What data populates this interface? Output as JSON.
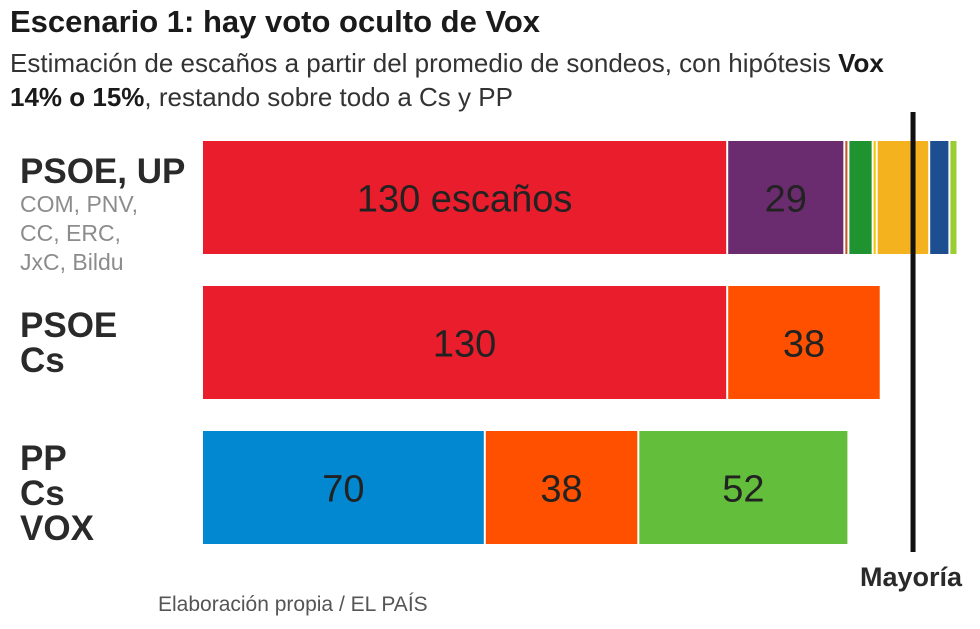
{
  "title": "Escenario 1: hay voto oculto de Vox",
  "subtitle": {
    "part1": "Estimación de escaños a partir del promedio de sondeos, con hipótesis ",
    "bold": "Vox 14% o 15%",
    "part2": ", restando sobre todo a Cs y PP"
  },
  "source": "Elaboración propia / EL PAÍS",
  "majority_label": "Mayoría",
  "colors": {
    "PSOE": "#ea1d2c",
    "UP": "#6b2c6f",
    "Cs": "#ff5000",
    "PP": "#0288d1",
    "VOX": "#63be3b",
    "COM": "#c0552b",
    "PNV": "#1e9330",
    "CC": "#f2c500",
    "ERC": "#f3b21e",
    "JxC": "#1d4e8f",
    "Bildu": "#9acd32"
  },
  "groups": [
    {
      "label": "PSOE, UP",
      "sublabel": "COM, PNV,\nCC, ERC,\nJxC, Bildu"
    },
    {
      "label": "PSOE\nCs",
      "sublabel": ""
    },
    {
      "label": "PP\nCs\nVOX",
      "sublabel": ""
    }
  ],
  "chart_data": {
    "type": "bar",
    "orientation": "horizontal",
    "stacked": true,
    "title": "Escenario 1: hay voto oculto de Vox",
    "unit": "escaños",
    "majority": 176,
    "majority_label": "Mayoría",
    "categories": [
      "PSOE, UP, COM, PNV, CC, ERC, JxC, Bildu",
      "PSOE, Cs",
      "PP, Cs, VOX"
    ],
    "bars": [
      {
        "segments": [
          {
            "party": "PSOE",
            "value": 130,
            "label": "130 escaños"
          },
          {
            "party": "UP",
            "value": 29,
            "label": "29"
          },
          {
            "party": "COM",
            "value": 1,
            "label": ""
          },
          {
            "party": "PNV",
            "value": 6,
            "label": ""
          },
          {
            "party": "CC",
            "value": 1,
            "label": ""
          },
          {
            "party": "ERC",
            "value": 13,
            "label": ""
          },
          {
            "party": "JxC",
            "value": 5,
            "label": ""
          },
          {
            "party": "Bildu",
            "value": 2,
            "label": ""
          }
        ]
      },
      {
        "segments": [
          {
            "party": "PSOE",
            "value": 130,
            "label": "130"
          },
          {
            "party": "Cs",
            "value": 38,
            "label": "38"
          }
        ]
      },
      {
        "segments": [
          {
            "party": "PP",
            "value": 70,
            "label": "70"
          },
          {
            "party": "Cs",
            "value": 38,
            "label": "38"
          },
          {
            "party": "VOX",
            "value": 52,
            "label": "52"
          }
        ]
      }
    ]
  }
}
